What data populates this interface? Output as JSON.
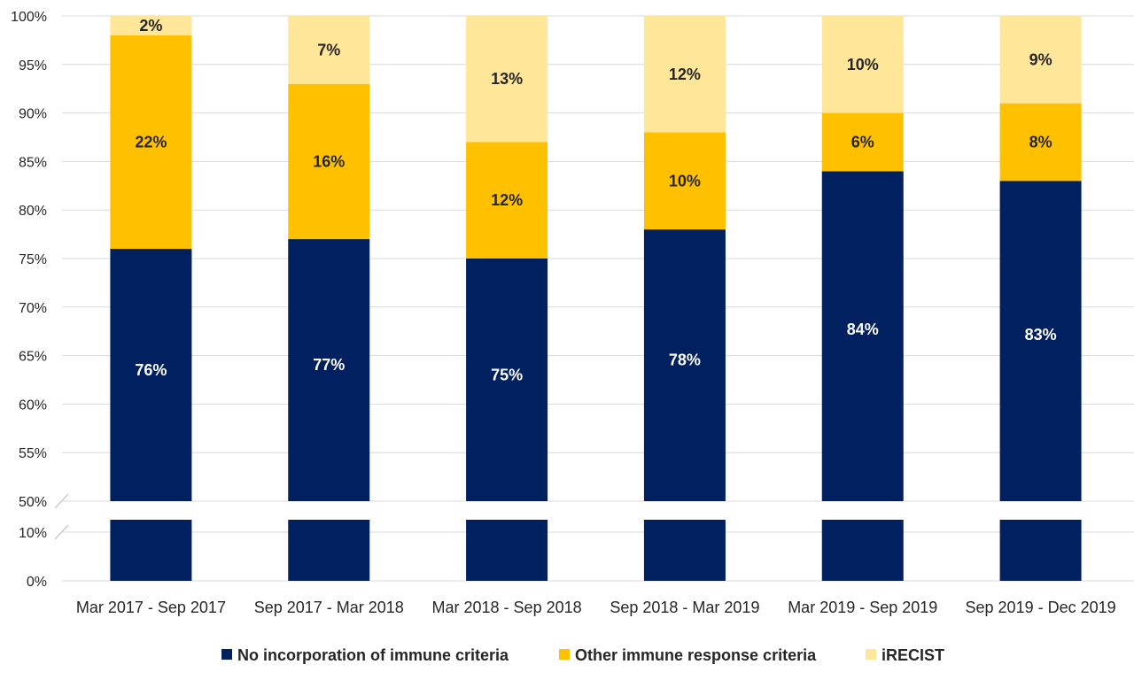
{
  "chart_data": {
    "type": "bar",
    "stacked": true,
    "axis_break": true,
    "categories": [
      "Mar 2017 - Sep 2017",
      "Sep 2017 - Mar 2018",
      "Mar 2018 - Sep 2018",
      "Sep 2018 - Mar 2019",
      "Mar 2019 - Sep 2019",
      "Sep 2019 - Dec 2019"
    ],
    "series": [
      {
        "name": "No incorporation of immune criteria",
        "color": "#002060",
        "label_color": "#ffffff",
        "values": [
          76,
          77,
          75,
          78,
          84,
          83
        ]
      },
      {
        "name": "Other immune response criteria",
        "color": "#ffc000",
        "label_color": "#262626",
        "values": [
          22,
          16,
          12,
          10,
          6,
          8
        ]
      },
      {
        "name": "iRECIST",
        "color": "#ffe699",
        "label_color": "#262626",
        "values": [
          2,
          7,
          13,
          12,
          10,
          9
        ]
      }
    ],
    "data_labels": [
      [
        "76%",
        "77%",
        "75%",
        "78%",
        "84%",
        "83%"
      ],
      [
        "22%",
        "16%",
        "12%",
        "10%",
        "6%",
        "8%"
      ],
      [
        "2%",
        "7%",
        "13%",
        "12%",
        "10%",
        "9%"
      ]
    ],
    "y_ticks_upper": [
      "100%",
      "95%",
      "90%",
      "85%",
      "80%",
      "75%",
      "70%",
      "65%",
      "60%",
      "55%",
      "50%"
    ],
    "y_ticks_lower": [
      "10%",
      "0%"
    ],
    "ylim_upper": [
      50,
      100
    ],
    "ylim_lower": [
      0,
      10
    ],
    "grid": true,
    "legend_position": "bottom"
  }
}
